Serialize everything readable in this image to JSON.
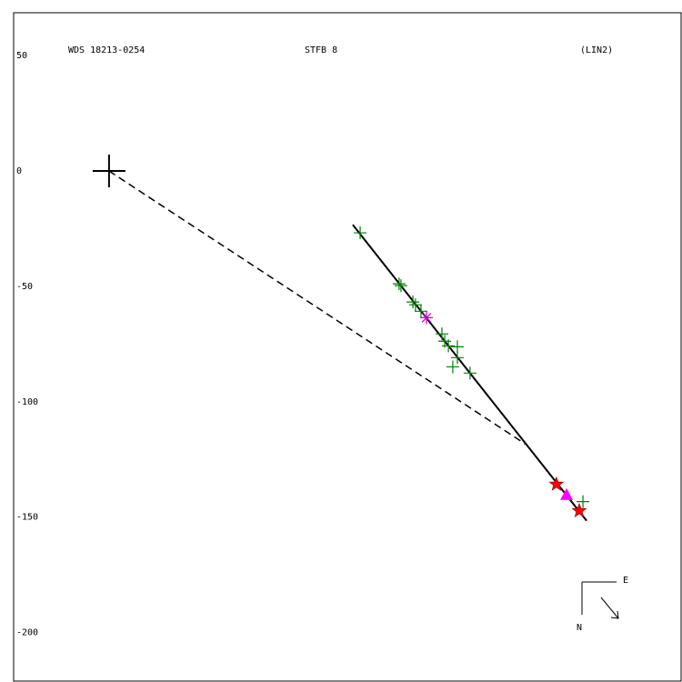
{
  "chart_data": {
    "type": "scatter",
    "title": "WDS 18213-0254",
    "subtitle": "STFB  8",
    "annotation": "(LIN2)",
    "xlim": [
      -41.4,
      248.3
    ],
    "ylim": [
      -221.1,
      68.6
    ],
    "yticks": [
      50,
      0,
      -50,
      -100,
      -150,
      -200
    ],
    "series": [
      {
        "color": "#008000",
        "marker": "plus",
        "x": [
          109.0,
          125.9,
          126.7,
          131.9,
          133.0,
          135.4,
          144.5,
          145.7,
          147.3,
          151.2,
          149.2,
          151.2,
          156.7,
          205.7
        ],
        "values": [
          -26.8,
          -48.9,
          -49.7,
          -56.8,
          -58.0,
          -60.8,
          -70.6,
          -73.8,
          -75.8,
          -76.2,
          -84.9,
          -80.9,
          -87.6,
          -143.3
        ]
      },
      {
        "color": "#cc00cc",
        "marker": "asterisk",
        "x": [
          137.8
        ],
        "values": [
          -63.6
        ]
      },
      {
        "color": "#ff0000",
        "marker": "star",
        "x": [
          194.2,
          204.1
        ],
        "values": [
          -135.8,
          -147.3
        ]
      },
      {
        "color": "#ff00ff",
        "marker": "triangle",
        "x": [
          198.6
        ],
        "values": [
          -140.2
        ]
      },
      {
        "color": "#000000",
        "marker": "cross",
        "x": [
          0
        ],
        "values": [
          0
        ]
      }
    ],
    "lines": [
      {
        "color": "#000000",
        "style": "solid",
        "x": [
          105.8,
          207.3
        ],
        "values": [
          -23.3,
          -151.6
        ]
      },
      {
        "color": "#000000",
        "style": "dashed",
        "x": [
          0,
          180.8
        ],
        "values": [
          0,
          -118.4
        ]
      }
    ],
    "compass": {
      "east": "E",
      "north": "N"
    }
  }
}
